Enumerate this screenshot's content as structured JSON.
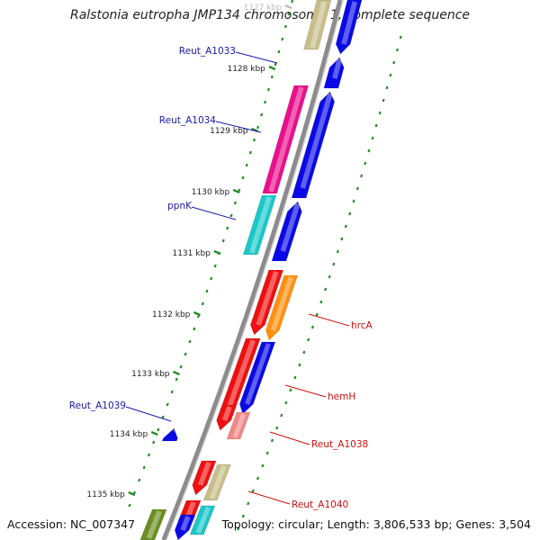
{
  "title": "Ralstonia eutropha JMP134 chromosome 1, complete sequence",
  "footer": {
    "accession": "Accession: NC_007347",
    "summary": "Topology: circular; Length: 3,806,533 bp; Genes: 3,504"
  },
  "ticks": [
    {
      "label": "1127 kbp",
      "faded": true
    },
    {
      "label": "1128 kbp"
    },
    {
      "label": "1129 kbp"
    },
    {
      "label": "1130 kbp"
    },
    {
      "label": "1131 kbp"
    },
    {
      "label": "1132 kbp"
    },
    {
      "label": "1133 kbp"
    },
    {
      "label": "1134 kbp"
    },
    {
      "label": "1135 kbp"
    }
  ],
  "gene_labels": [
    {
      "name": "Reut_A1033",
      "color": "#1a1aa6"
    },
    {
      "name": "Reut_A1034",
      "color": "#1a1aa6"
    },
    {
      "name": "ppnK",
      "color": "#1a1aa6"
    },
    {
      "name": "Reut_A1039",
      "color": "#1a1aa6"
    },
    {
      "name": "hrcA",
      "color": "#cc1111"
    },
    {
      "name": "hemH",
      "color": "#cc1111"
    },
    {
      "name": "Reut_A1038",
      "color": "#cc1111"
    },
    {
      "name": "Reut_A1040",
      "color": "#cc1111"
    }
  ],
  "colors": {
    "backbone": "#8c8c8c",
    "tick_green": "#2a8a2a",
    "gene_blue": "#0a0ae6",
    "gene_red": "#ee1010",
    "gene_magenta": "#e8108c",
    "gene_cyan": "#1ac8c8",
    "gene_orange": "#ff9010",
    "gene_pink": "#f08888",
    "gene_khaki": "#c8be8a",
    "gene_olive": "#6b8e23"
  }
}
